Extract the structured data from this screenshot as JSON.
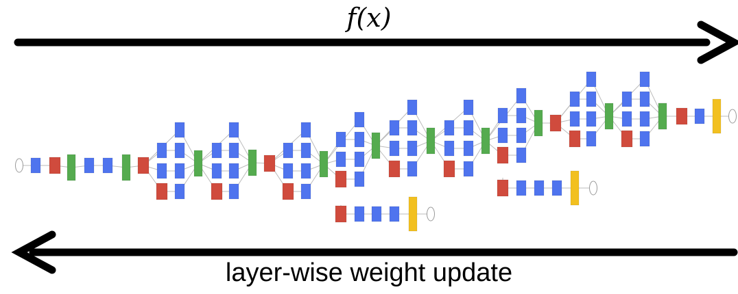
{
  "forward_label": "f(x)",
  "backward_label": "layer-wise weight update",
  "forward_arrow_icon": "arrow-right-icon",
  "backward_arrow_icon": "arrow-left-icon",
  "colors": {
    "conv": "#4f74ee",
    "pool": "#d04b3d",
    "concat": "#55ab4f",
    "softmax": "#f2c020",
    "io": "#ffffff",
    "edge": "#bbbbbb"
  }
}
